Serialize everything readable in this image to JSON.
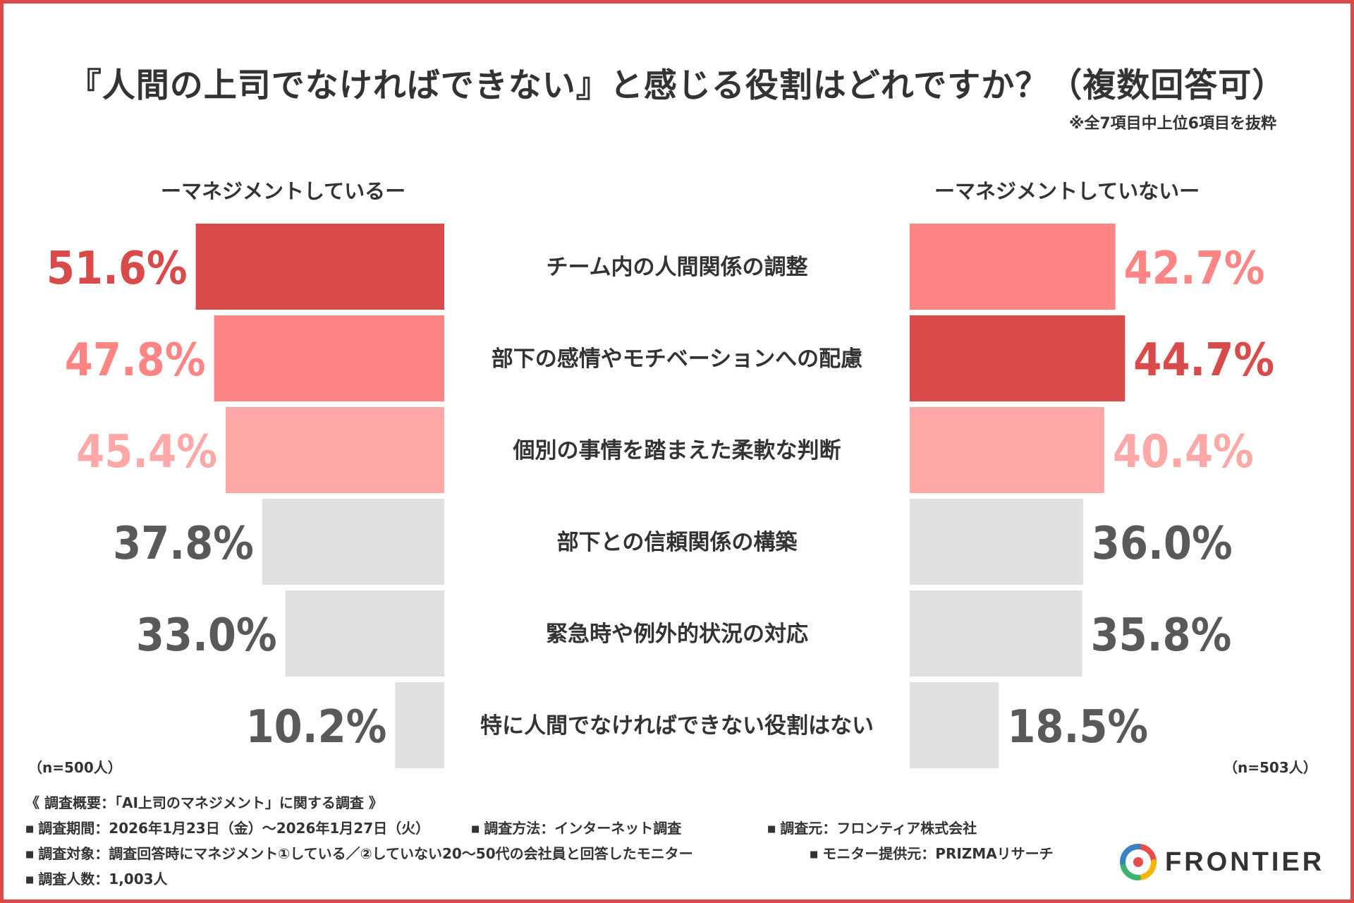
{
  "title": "『人間の上司でなければできない』と感じる役割はどれですか？（複数回答可）",
  "note": "※全7項目中上位6項目を抜粋",
  "left_group": "ーマネジメントしているー",
  "right_group": "ーマネジメントしていないー",
  "left_n": "（n=500人）",
  "right_n": "（n=503人）",
  "chart_data": {
    "type": "bar",
    "orientation": "horizontal-butterfly",
    "title": "『人間の上司でなければできない』と感じる役割はどれですか？（複数回答可）",
    "categories": [
      "チーム内の人間関係の調整",
      "部下の感情やモチベーションへの配慮",
      "個別の事情を踏まえた柔軟な判断",
      "部下との信頼関係の構築",
      "緊急時や例外的状況の対応",
      "特に人間でなければできない役割はない"
    ],
    "series": [
      {
        "name": "ーマネジメントしているー",
        "values": [
          51.6,
          47.8,
          45.4,
          37.8,
          33.0,
          10.2
        ],
        "labels": [
          "51.6%",
          "47.8%",
          "45.4%",
          "37.8%",
          "33.0%",
          "10.2%"
        ],
        "bar_colors": [
          "#d94a4a",
          "#ff8585",
          "#ffa8a8",
          "#e0e0e0",
          "#e0e0e0",
          "#e0e0e0"
        ],
        "label_colors": [
          "#d94a4a",
          "#ff8585",
          "#ffa8a8",
          "#595959",
          "#595959",
          "#595959"
        ]
      },
      {
        "name": "ーマネジメントしていないー",
        "values": [
          42.7,
          44.7,
          40.4,
          36.0,
          35.8,
          18.5
        ],
        "labels": [
          "42.7%",
          "44.7%",
          "40.4%",
          "36.0%",
          "35.8%",
          "18.5%"
        ],
        "bar_colors": [
          "#ff8585",
          "#d94a4a",
          "#ffa8a8",
          "#e0e0e0",
          "#e0e0e0",
          "#e0e0e0"
        ],
        "label_colors": [
          "#ff8585",
          "#d94a4a",
          "#ffa8a8",
          "#595959",
          "#595959",
          "#595959"
        ]
      }
    ],
    "xlim": [
      0,
      60
    ],
    "legend": "top"
  },
  "footer": {
    "heading": "《 調査概要：「AI上司のマネジメント」に関する調査 》",
    "period": "調査期間：2026年1月23日（金）〜2026年1月27日（火）",
    "method": "調査方法：インターネット調査",
    "source": "調査元：フロンティア株式会社",
    "target": "調査対象：調査回答時にマネジメント①している／②していない20〜50代の会社員と回答したモニター",
    "panel": "モニター提供元：PRIZMAリサーチ",
    "count": "調査人数：1,003人"
  },
  "logo": {
    "text": "FRONTIER"
  },
  "colors": {
    "frame": "#d94a4a",
    "text": "#333333"
  }
}
